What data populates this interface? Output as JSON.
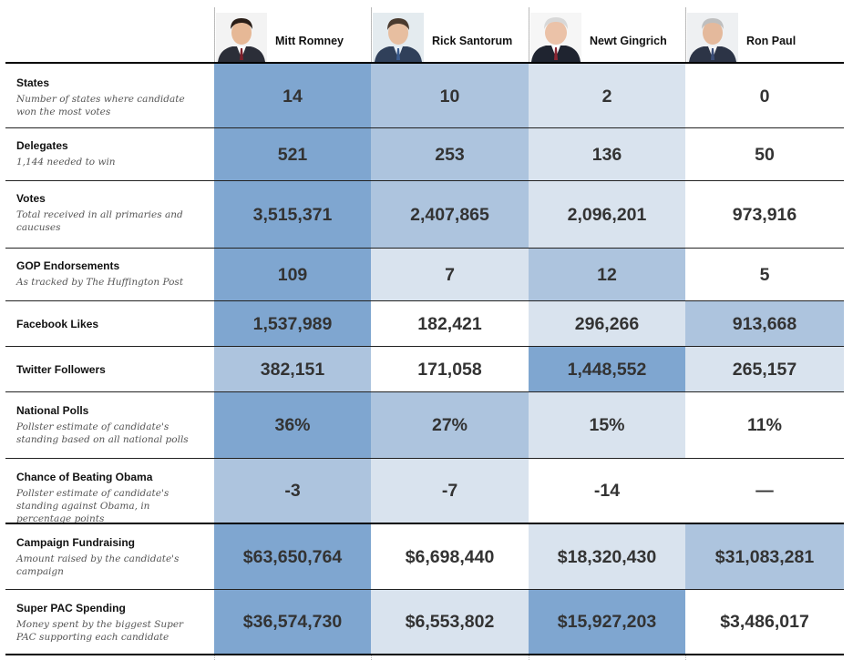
{
  "candidates": [
    {
      "name": "Mitt Romney"
    },
    {
      "name": "Rick Santorum"
    },
    {
      "name": "Newt Gingrich"
    },
    {
      "name": "Ron Paul"
    }
  ],
  "colors": {
    "dark": "#7fa6d0",
    "medium": "#adc4de",
    "light": "#d9e3ee",
    "none": "#ffffff"
  },
  "rows": [
    {
      "title": "States",
      "subtitle": "Number of states where candidate won the most votes",
      "values": [
        "14",
        "10",
        "2",
        "0"
      ],
      "shades": [
        "dark",
        "medium",
        "light",
        "none"
      ]
    },
    {
      "title": "Delegates",
      "subtitle": "1,144 needed to win",
      "values": [
        "521",
        "253",
        "136",
        "50"
      ],
      "shades": [
        "dark",
        "medium",
        "light",
        "none"
      ]
    },
    {
      "title": "Votes",
      "subtitle": "Total received in all primaries and caucuses",
      "values": [
        "3,515,371",
        "2,407,865",
        "2,096,201",
        "973,916"
      ],
      "shades": [
        "dark",
        "medium",
        "light",
        "none"
      ]
    },
    {
      "title": "GOP Endorsements",
      "subtitle": "As tracked by The Huffington Post",
      "values": [
        "109",
        "7",
        "12",
        "5"
      ],
      "shades": [
        "dark",
        "light",
        "medium",
        "none"
      ]
    },
    {
      "title": "Facebook Likes",
      "subtitle": "",
      "values": [
        "1,537,989",
        "182,421",
        "296,266",
        "913,668"
      ],
      "shades": [
        "dark",
        "none",
        "light",
        "medium"
      ]
    },
    {
      "title": "Twitter Followers",
      "subtitle": "",
      "values": [
        "382,151",
        "171,058",
        "1,448,552",
        "265,157"
      ],
      "shades": [
        "medium",
        "none",
        "dark",
        "light"
      ]
    },
    {
      "title": "National Polls",
      "subtitle": "Pollster estimate of candidate's standing based on all national polls",
      "values": [
        "36%",
        "27%",
        "15%",
        "11%"
      ],
      "shades": [
        "dark",
        "medium",
        "light",
        "none"
      ]
    },
    {
      "title": "Chance of Beating Obama",
      "subtitle": "Pollster estimate of candidate's standing against Obama, in percentage points",
      "values": [
        "-3",
        "-7",
        "-14",
        "—"
      ],
      "shades": [
        "medium",
        "light",
        "none",
        "none"
      ]
    },
    {
      "title": "Campaign Fundraising",
      "subtitle": "Amount raised by the candidate's campaign",
      "values": [
        "$63,650,764",
        "$6,698,440",
        "$18,320,430",
        "$31,083,281"
      ],
      "shades": [
        "dark",
        "none",
        "light",
        "medium"
      ]
    },
    {
      "title": "Super PAC Spending",
      "subtitle": "Money spent by the biggest Super PAC supporting each candidate",
      "values": [
        "$36,574,730",
        "$6,553,802",
        "$15,927,203",
        "$3,486,017"
      ],
      "shades": [
        "dark",
        "light",
        "dark",
        "none"
      ]
    }
  ]
}
